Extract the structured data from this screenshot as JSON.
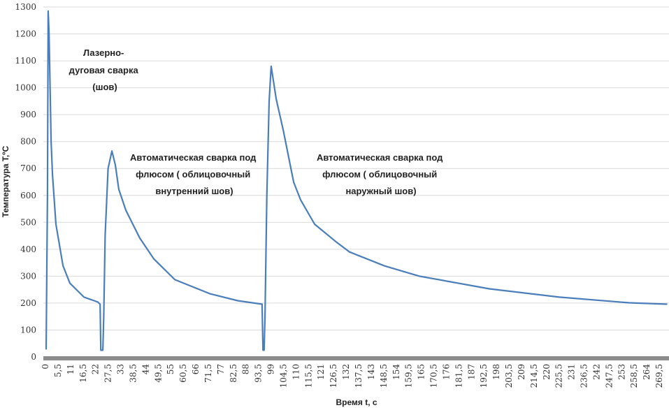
{
  "chart_data": {
    "type": "line",
    "title": "",
    "xlabel": "Время t, с",
    "ylabel": "Температура T,ºC",
    "ylim": [
      0,
      1300
    ],
    "xlim": [
      0,
      273
    ],
    "yticks": [
      0,
      100,
      200,
      300,
      400,
      500,
      600,
      700,
      800,
      900,
      1000,
      1100,
      1200,
      1300
    ],
    "xtick_labels": [
      "0",
      "5,5",
      "11",
      "16,5",
      "22",
      "27,5",
      "33",
      "38,5",
      "44",
      "49,5",
      "55",
      "60,5",
      "66",
      "71,5",
      "77",
      "82,5",
      "88",
      "93,5",
      "99",
      "104,5",
      "110",
      "115,5",
      "121",
      "126,5",
      "132",
      "137,5",
      "143",
      "148,5",
      "154",
      "159,5",
      "165",
      "170,5",
      "176",
      "181,5",
      "187",
      "192,5",
      "198",
      "203,5",
      "209",
      "214,5",
      "220",
      "225,5",
      "231",
      "236,5",
      "242",
      "247,5",
      "253",
      "258,5",
      "264",
      "269,5"
    ],
    "grid": true,
    "series_color": "#4a7ebb",
    "series": [
      {
        "name": "T",
        "x": [
          0,
          0.3,
          0.9,
          1.2,
          1.6,
          2.5,
          3.1,
          4.6,
          7.7,
          10.7,
          16.9,
          23,
          24,
          24.3,
          25.2,
          25.6,
          26.2,
          27.5,
          29.2,
          30.7,
          32.2,
          35.3,
          41.4,
          47.6,
          56.8,
          72.1,
          84.4,
          95.1,
          95.5,
          96,
          96.4,
          97.2,
          98.2,
          99.1,
          101.3,
          104.4,
          109,
          112,
          118.2,
          127.4,
          133.5,
          148.9,
          164.2,
          194.9,
          225.6,
          256.3,
          273
        ],
        "y": [
          30,
          30,
          600,
          1285,
          1200,
          800,
          676,
          493,
          339,
          274,
          222,
          204,
          196,
          25,
          25,
          150,
          450,
          700,
          765,
          713,
          623,
          545,
          442,
          364,
          287,
          235,
          209,
          196,
          25,
          25,
          150,
          600,
          950,
          1080,
          958,
          842,
          649,
          584,
          493,
          429,
          390,
          338,
          300,
          253,
          222,
          201,
          196
        ]
      }
    ],
    "annotations": [
      {
        "lines": [
          "Лазерно-",
          "дуговая сварка",
          "(шов)"
        ]
      },
      {
        "lines": [
          "Автоматическая сварка под",
          "флюсом ( облицовочный",
          "внутренний шов)"
        ]
      },
      {
        "lines": [
          "Автоматическая сварка под",
          "флюсом ( облицовочный",
          "наружный шов)"
        ]
      }
    ]
  }
}
